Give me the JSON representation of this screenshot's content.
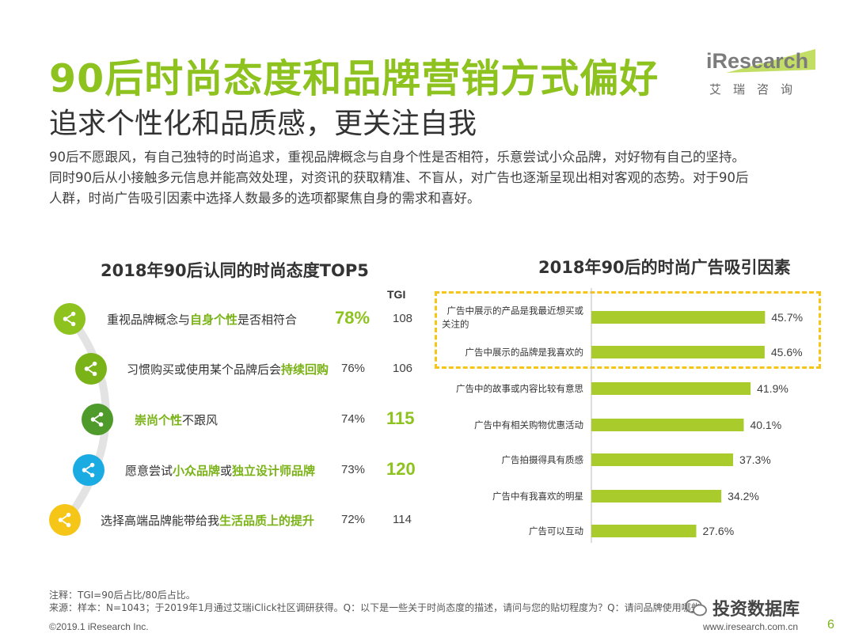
{
  "header": {
    "title": "90后时尚态度和品牌营销方式偏好",
    "subtitle": "追求个性化和品质感，更关注自我",
    "intro_lines": [
      "90后不愿跟风，有自己独特的时尚追求，重视品牌概念与自身个性是否相符，乐意尝试小众品牌，对好物有自己的坚持。",
      "同时90后从小接触多元信息并能高效处理，对资讯的获取精准、不盲从，对广告也逐渐呈现出相对客观的态势。对于90后",
      "人群，时尚广告吸引因素中选择人数最多的选项都聚焦自身的需求和喜好。"
    ]
  },
  "logo": {
    "text": "iResearch",
    "sub": "艾瑞咨询"
  },
  "left_panel": {
    "title": "2018年90后认同的时尚态度TOP5",
    "tgi_header": "TGI",
    "items": [
      {
        "parts": [
          {
            "t": "重视品牌概念与",
            "h": false
          },
          {
            "t": "自身个性",
            "h": true
          },
          {
            "t": "是否相符合",
            "h": false
          }
        ],
        "pct": "78%",
        "tgi": "108",
        "color": "#8dc21f"
      },
      {
        "parts": [
          {
            "t": "习惯购买或使用某个品牌后会",
            "h": false
          },
          {
            "t": "持续回购",
            "h": true
          }
        ],
        "pct": "76%",
        "tgi": "106",
        "color": "#7ab317"
      },
      {
        "parts": [
          {
            "t": "崇尚个性",
            "h": true
          },
          {
            "t": "不跟风",
            "h": false
          }
        ],
        "pct": "74%",
        "tgi": "115",
        "color": "#4e9a2a"
      },
      {
        "parts": [
          {
            "t": "愿意尝试",
            "h": false
          },
          {
            "t": "小众品牌",
            "h": true
          },
          {
            "t": "或",
            "h": false
          },
          {
            "t": "独立设计师品牌",
            "h": true
          }
        ],
        "pct": "73%",
        "tgi": "120",
        "color": "#1aabe2"
      },
      {
        "parts": [
          {
            "t": "选择高端品牌能带给我",
            "h": false
          },
          {
            "t": "生活品质上的提升",
            "h": true
          }
        ],
        "pct": "72%",
        "tgi": "114",
        "color": "#f5c518"
      }
    ]
  },
  "chart_data": {
    "type": "bar",
    "orientation": "horizontal",
    "title": "2018年90后的时尚广告吸引因素",
    "categories": [
      "广告中展示的产品是我最近想买或关注的",
      "广告中展示的品牌是我喜欢的",
      "广告中的故事或内容比较有意思",
      "广告中有相关购物优惠活动",
      "广告拍摄得具有质感",
      "广告中有我喜欢的明星",
      "广告可以互动"
    ],
    "category_lines": [
      [
        "广告中展示的产品是我最近想买或",
        "关注的"
      ],
      [
        "广告中展示的品牌是我喜欢的"
      ],
      [
        "广告中的故事或内容比较有意思"
      ],
      [
        "广告中有相关购物优惠活动"
      ],
      [
        "广告拍摄得具有质感"
      ],
      [
        "广告中有我喜欢的明星"
      ],
      [
        "广告可以互动"
      ]
    ],
    "values": [
      45.7,
      45.6,
      41.9,
      40.1,
      37.3,
      34.2,
      27.6
    ],
    "value_labels": [
      "45.7%",
      "45.6%",
      "41.9%",
      "40.1%",
      "37.3%",
      "34.2%",
      "27.6%"
    ],
    "xlim": [
      0,
      50
    ],
    "bar_color": "#a9cc2c",
    "highlight_box_color": "#f5c518",
    "highlighted_count": 2,
    "grid": false
  },
  "notes": {
    "line1": "注释：TGI=90后占比/80后占比。",
    "line2": "来源：样本：N=1043；于2019年1月通过艾瑞iClick社区调研获得。Q：以下是一些关于时尚态度的描述，请问与您的贴切程度为？Q：请问品牌使用哪些"
  },
  "footer": {
    "copyright": "©2019.1 iResearch Inc.",
    "site": "www.iresearch.com.cn",
    "page": "6",
    "watermark": "投资数据库"
  }
}
